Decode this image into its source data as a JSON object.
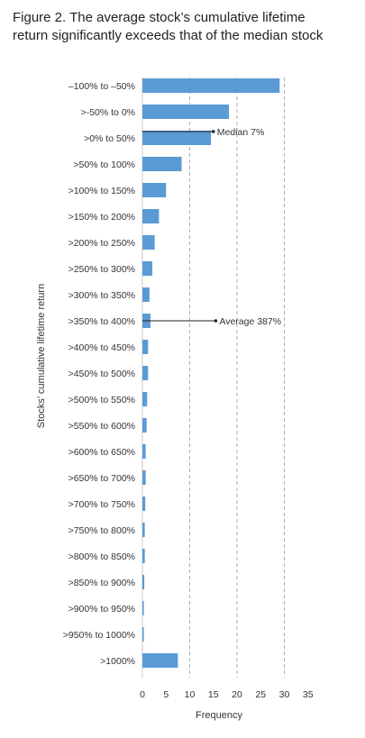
{
  "figure": {
    "title_line1": "Figure 2. The average stock’s cumulative lifetime",
    "title_line2": "return significantly exceeds that of the median stock"
  },
  "chart_data": {
    "type": "bar",
    "orientation": "horizontal",
    "categories": [
      "–100% to –50%",
      ">-50% to 0%",
      ">0% to 50%",
      ">50% to 100%",
      ">100% to 150%",
      ">150% to 200%",
      ">200% to 250%",
      ">250% to 300%",
      ">300% to 350%",
      ">350% to 400%",
      ">400% to 450%",
      ">450% to 500%",
      ">500% to 550%",
      ">550% to 600%",
      ">600% to 650%",
      ">650% to 700%",
      ">700% to 750%",
      ">750% to 800%",
      ">800% to 850%",
      ">850% to 900%",
      ">900% to 950%",
      ">950% to 1000%",
      ">1000%"
    ],
    "values": [
      29.0,
      18.3,
      14.5,
      8.3,
      5.0,
      3.5,
      2.6,
      2.1,
      1.5,
      1.7,
      1.2,
      1.2,
      1.0,
      0.9,
      0.7,
      0.7,
      0.6,
      0.5,
      0.5,
      0.4,
      0.3,
      0.3,
      7.5
    ],
    "xlabel": "Frequency",
    "ylabel": "Stocks’ cumulative lifetime return",
    "xlim": [
      0,
      35
    ],
    "xticks": [
      0,
      5,
      10,
      15,
      20,
      25,
      30,
      35
    ],
    "grid": "vertical dashed at 10, 20, 30",
    "bar_color": "#5b9bd5",
    "annotations": [
      {
        "text": "Median 7%",
        "category_index": 2,
        "x_value": 15.0
      },
      {
        "text": "Average 387%",
        "category_index": 9,
        "x_value": 15.5
      }
    ]
  }
}
